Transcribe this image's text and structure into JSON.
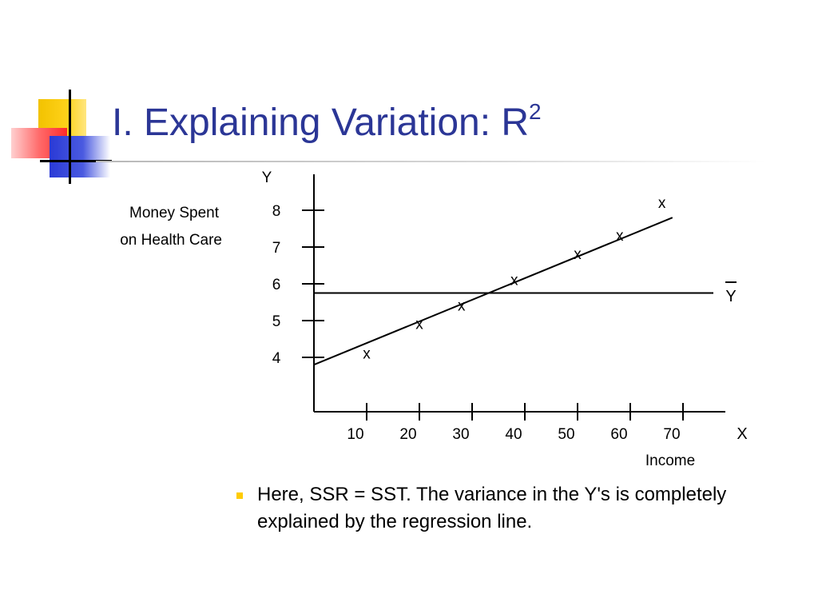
{
  "slide": {
    "title": "I. Explaining Variation: R",
    "title_superscript": "2",
    "accent_colors": {
      "title": "#2b3696",
      "yellow": "#ffd21a",
      "red": "#ff2a2a",
      "blue": "#2a3ad6"
    },
    "bullet_text": "Here, SSR = SST.  The variance in the Y's is completely explained by the regression line."
  },
  "chart_data": {
    "type": "scatter",
    "axis_x_letter": "X",
    "axis_y_letter": "Y",
    "xlabel": "Income",
    "ylabel_lines": [
      "Money Spent",
      "on Health Care"
    ],
    "x_ticks": [
      10,
      20,
      30,
      40,
      50,
      60,
      70
    ],
    "y_ticks": [
      4,
      5,
      6,
      7,
      8
    ],
    "point_marker": "x",
    "points": [
      {
        "x": 10,
        "y": 4.1
      },
      {
        "x": 20,
        "y": 4.9
      },
      {
        "x": 28,
        "y": 5.4
      },
      {
        "x": 38,
        "y": 6.1
      },
      {
        "x": 50,
        "y": 6.8
      },
      {
        "x": 58,
        "y": 7.3
      },
      {
        "x": 66,
        "y": 8.2
      }
    ],
    "regression_line": {
      "from": {
        "x": 0,
        "y": 3.8
      },
      "to": {
        "x": 68,
        "y": 7.8
      }
    },
    "mean_line": {
      "y": 5.75,
      "label": "Y"
    },
    "grid": false
  }
}
